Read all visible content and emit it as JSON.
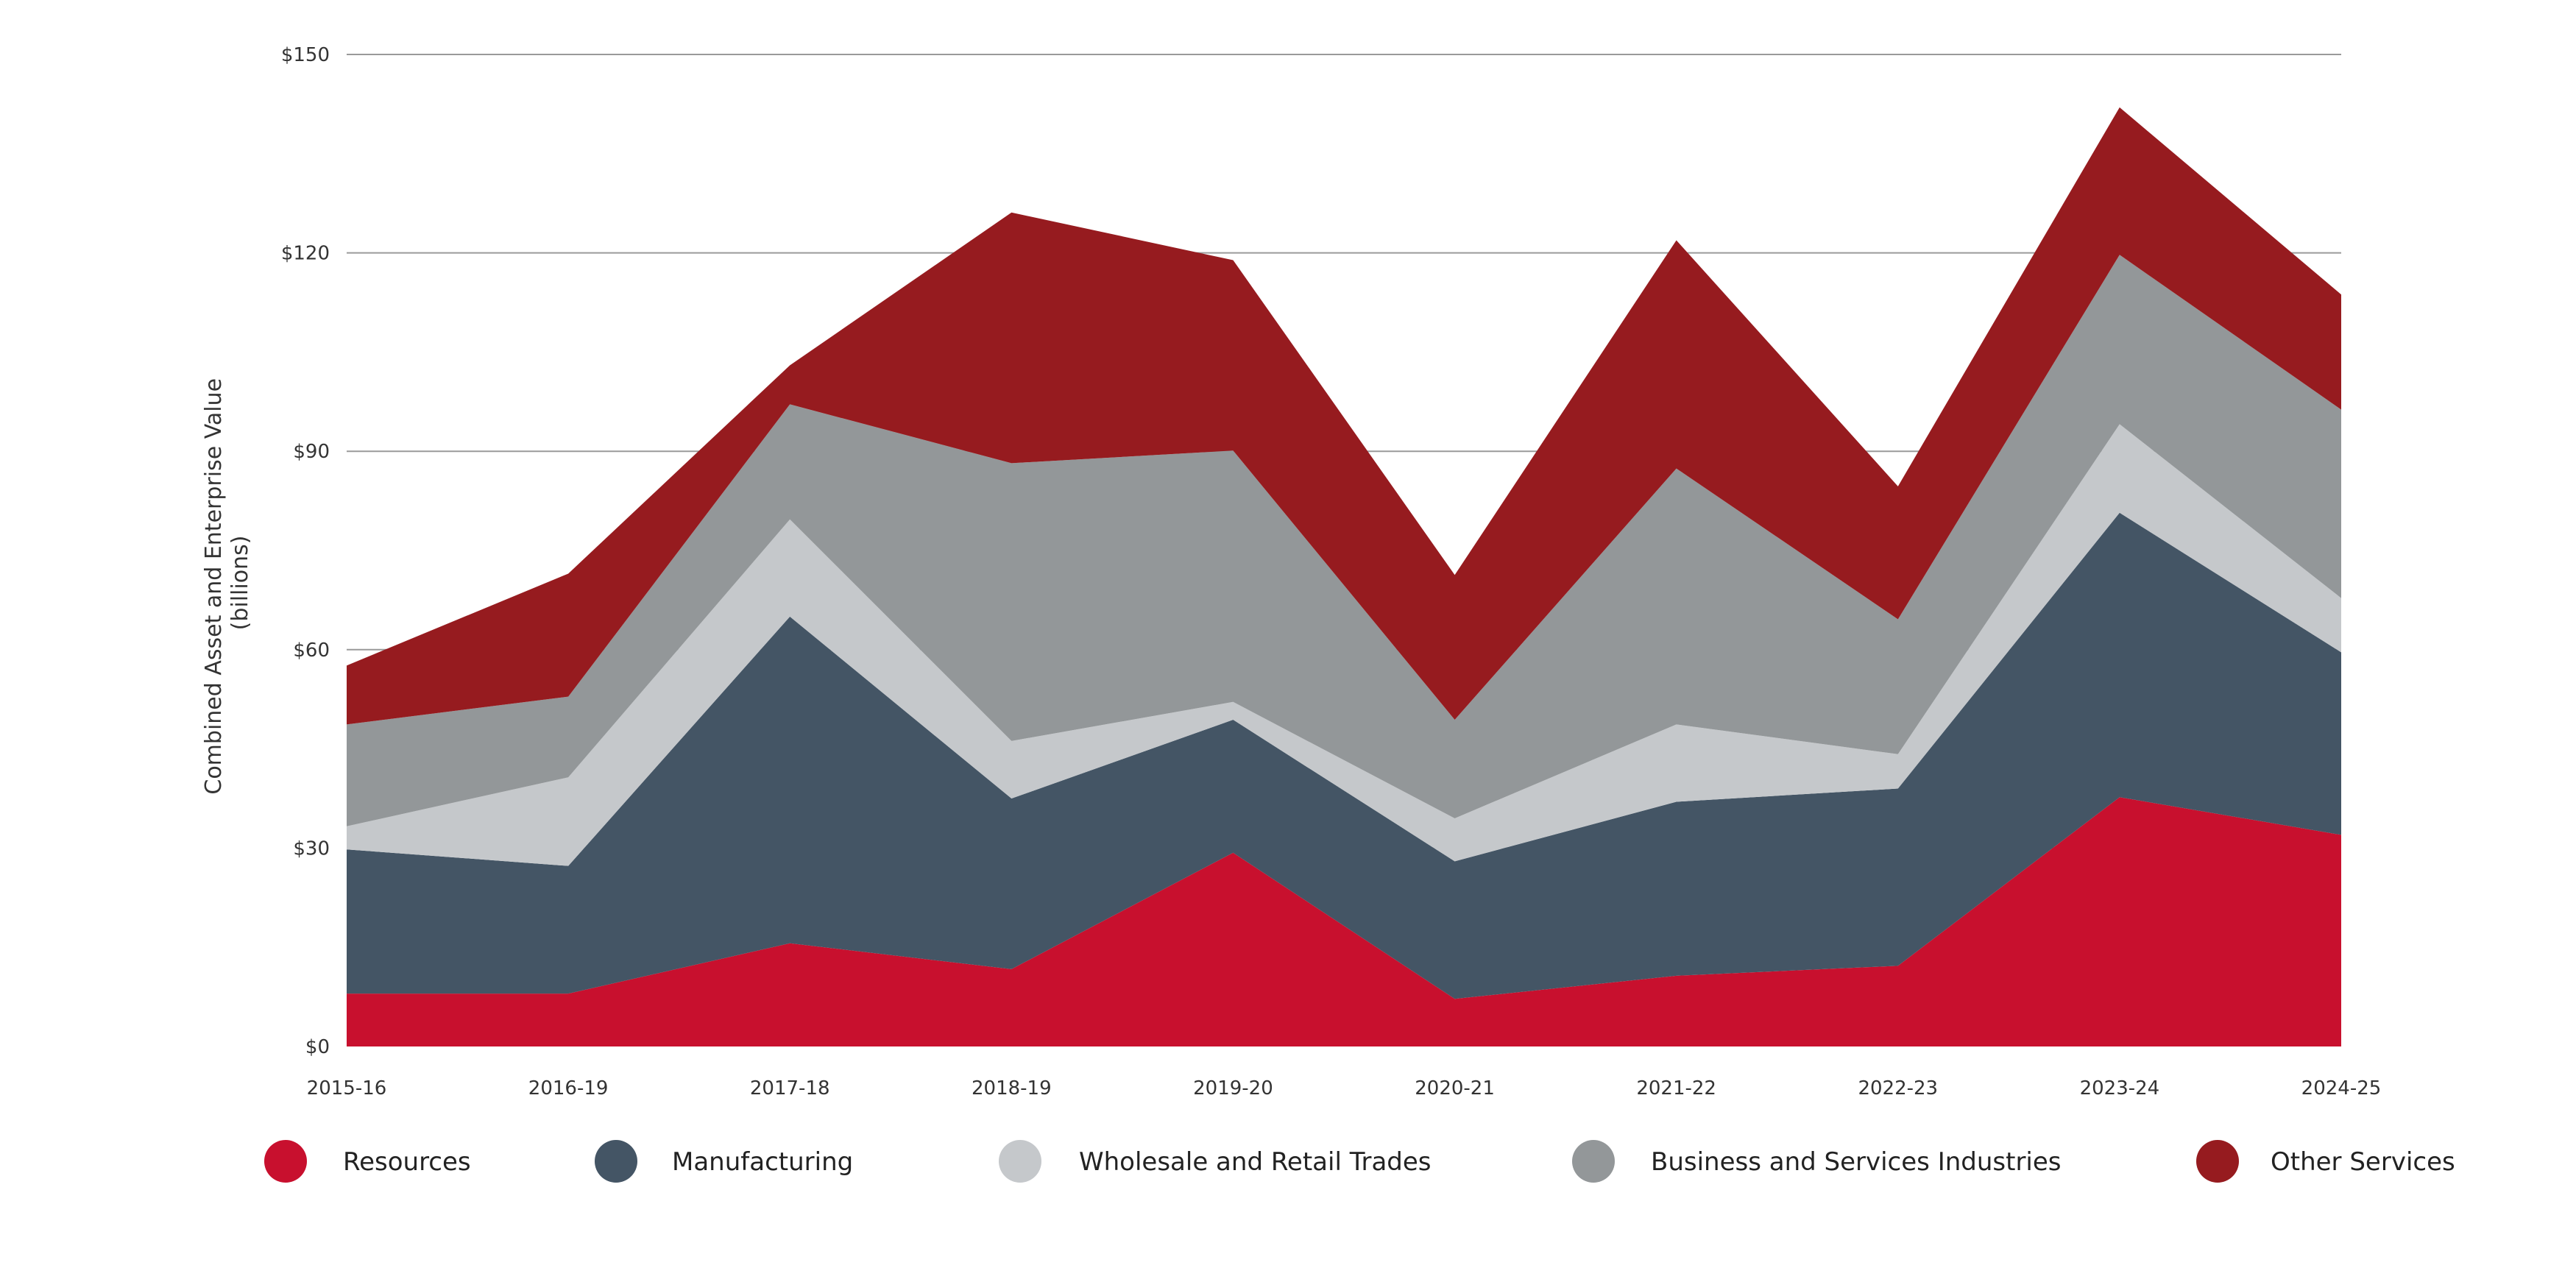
{
  "chart_data": {
    "type": "area",
    "stacked": true,
    "title": "",
    "xlabel": "",
    "ylabel": "Combined Asset and Enterprise Value",
    "ylabel_sub": "(billions)",
    "ylim": [
      0,
      150
    ],
    "yticks": [
      0,
      30,
      60,
      90,
      120,
      150
    ],
    "ytick_labels": [
      "$0",
      "$30",
      "$60",
      "$90",
      "$120",
      "$150"
    ],
    "grid": true,
    "legend_position": "bottom",
    "categories": [
      "2015-16",
      "2016-19",
      "2017-18",
      "2018-19",
      "2019-20",
      "2020-21",
      "2021-22",
      "2022-23",
      "2023-24",
      "2024-25"
    ],
    "series": [
      {
        "name": "Resources",
        "color": "#C8102E",
        "values": [
          8.0,
          8.0,
          15.6,
          11.7,
          29.3,
          7.2,
          10.7,
          12.2,
          37.7,
          32.0
        ]
      },
      {
        "name": "Manufacturing",
        "color": "#445565",
        "values": [
          21.8,
          19.3,
          49.4,
          25.8,
          20.1,
          20.8,
          26.3,
          26.8,
          43.0,
          27.6
        ]
      },
      {
        "name": "Wholesale and Retail Trades",
        "color": "#C5C8CB",
        "values": [
          3.5,
          13.4,
          14.7,
          8.7,
          2.7,
          6.5,
          11.7,
          5.2,
          13.4,
          8.2
        ]
      },
      {
        "name": "Business and Services Industries",
        "color": "#939799",
        "values": [
          15.4,
          12.2,
          17.4,
          42.0,
          38.0,
          14.9,
          38.7,
          20.4,
          25.6,
          28.5
        ]
      },
      {
        "name": "Other Services",
        "color": "#961B1F",
        "values": [
          8.9,
          18.6,
          5.9,
          37.9,
          28.8,
          21.9,
          34.5,
          20.1,
          22.3,
          17.4
        ]
      }
    ]
  }
}
